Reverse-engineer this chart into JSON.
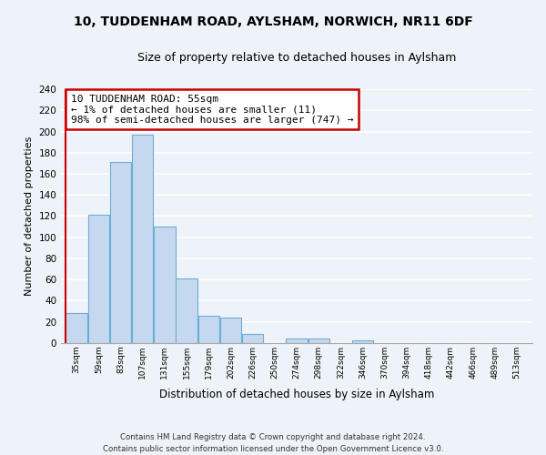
{
  "title": "10, TUDDENHAM ROAD, AYLSHAM, NORWICH, NR11 6DF",
  "subtitle": "Size of property relative to detached houses in Aylsham",
  "xlabel": "Distribution of detached houses by size in Aylsham",
  "ylabel": "Number of detached properties",
  "bin_labels": [
    "35sqm",
    "59sqm",
    "83sqm",
    "107sqm",
    "131sqm",
    "155sqm",
    "179sqm",
    "202sqm",
    "226sqm",
    "250sqm",
    "274sqm",
    "298sqm",
    "322sqm",
    "346sqm",
    "370sqm",
    "394sqm",
    "418sqm",
    "442sqm",
    "466sqm",
    "489sqm",
    "513sqm"
  ],
  "bar_values": [
    28,
    121,
    171,
    197,
    110,
    61,
    26,
    24,
    8,
    0,
    4,
    4,
    0,
    2,
    0,
    0,
    0,
    0,
    0,
    0,
    0
  ],
  "bar_color": "#c5d8f0",
  "bar_edge_color": "#6aaed6",
  "annotation_line1": "10 TUDDENHAM ROAD: 55sqm",
  "annotation_line2": "← 1% of detached houses are smaller (11)",
  "annotation_line3": "98% of semi-detached houses are larger (747) →",
  "annotation_box_color": "#ffffff",
  "annotation_border_color": "#cc0000",
  "vline_color": "#cc0000",
  "ylim": [
    0,
    240
  ],
  "yticks": [
    0,
    20,
    40,
    60,
    80,
    100,
    120,
    140,
    160,
    180,
    200,
    220,
    240
  ],
  "footer_line1": "Contains HM Land Registry data © Crown copyright and database right 2024.",
  "footer_line2": "Contains public sector information licensed under the Open Government Licence v3.0.",
  "bg_color": "#eef2f9",
  "grid_color": "#ffffff"
}
